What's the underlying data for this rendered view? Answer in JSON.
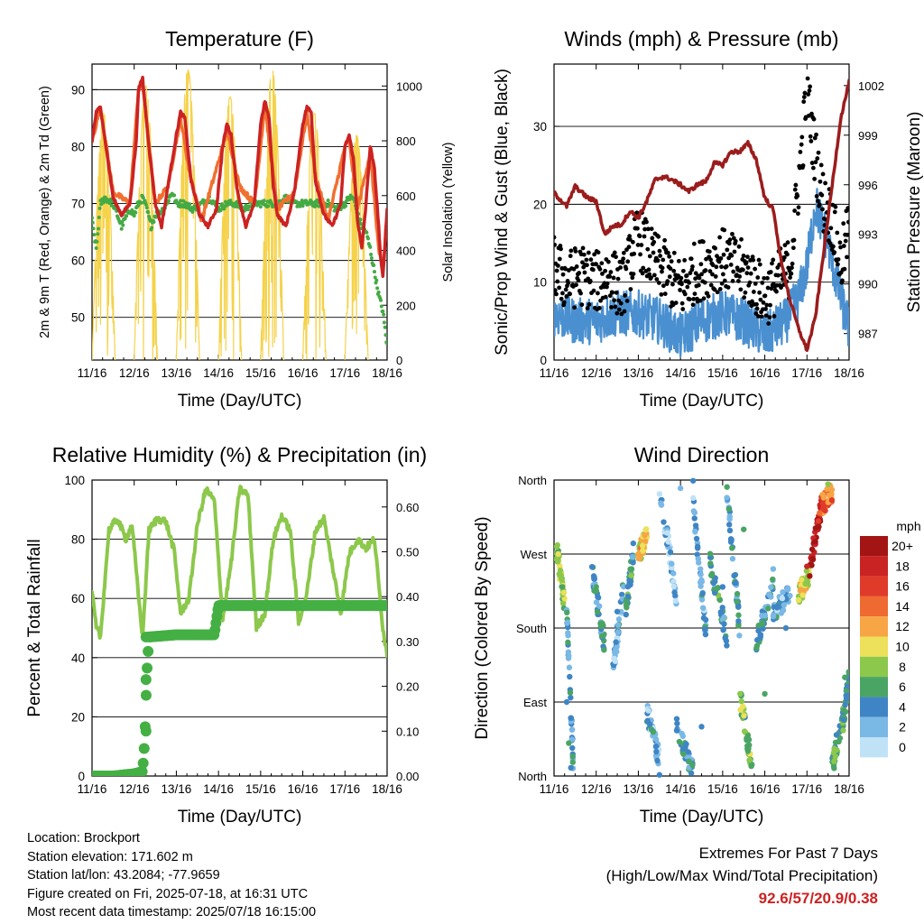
{
  "chart_data": [
    {
      "type": "line",
      "title": "Temperature (F)",
      "xlabel": "Time (Day/UTC)",
      "ylabel": "2m & 9m T (Red, Orange) & 2m Td (Green)",
      "y2label": "Solar Insolation (Yellow)",
      "xticks": [
        "11/16",
        "12/16",
        "13/16",
        "14/16",
        "15/16",
        "16/16",
        "17/16",
        "18/16"
      ],
      "xlim": [
        0,
        7
      ],
      "ylim": [
        42.5,
        94.5
      ],
      "yticks": [
        50,
        60,
        70,
        80,
        90
      ],
      "y2lim": [
        0,
        1080
      ],
      "y2ticks": [
        0,
        200,
        400,
        600,
        800,
        1000
      ],
      "series": [
        {
          "name": "2m T",
          "color": "#cc2222",
          "x": [
            0,
            0.1,
            0.2,
            0.35,
            0.5,
            0.7,
            0.9,
            1.05,
            1.1,
            1.2,
            1.35,
            1.5,
            1.65,
            1.8,
            2.0,
            2.1,
            2.2,
            2.35,
            2.55,
            2.75,
            2.95,
            3.1,
            3.2,
            3.3,
            3.45,
            3.65,
            3.85,
            4.0,
            4.1,
            4.2,
            4.3,
            4.4,
            4.6,
            4.8,
            5.0,
            5.1,
            5.2,
            5.3,
            5.5,
            5.7,
            5.9,
            6.0,
            6.1,
            6.2,
            6.3,
            6.4,
            6.5,
            6.6,
            6.7,
            6.8,
            6.85,
            6.9,
            7.0
          ],
          "y": [
            81,
            86,
            87,
            79,
            71,
            68,
            70,
            81,
            90,
            92,
            80,
            70,
            66,
            73,
            82,
            86,
            85,
            74,
            68,
            66,
            69,
            80,
            84,
            82,
            72,
            66,
            70,
            84,
            88,
            85,
            73,
            68,
            66,
            72,
            84,
            87,
            86,
            74,
            68,
            66,
            70,
            80,
            82,
            78,
            67,
            62,
            70,
            80,
            76,
            66,
            60,
            57,
            69
          ]
        },
        {
          "name": "9m T",
          "color": "#f07030",
          "x": [
            0,
            0.2,
            0.5,
            0.9,
            1.1,
            1.2,
            1.5,
            1.8,
            2.1,
            2.3,
            2.6,
            3.1,
            3.2,
            3.5,
            3.85,
            4.1,
            4.4,
            4.8,
            5.1,
            5.3,
            5.6,
            6.0,
            6.1,
            6.3,
            6.6,
            6.8,
            6.9,
            7.0
          ],
          "y": [
            81,
            87,
            72,
            70,
            90,
            91,
            70,
            73,
            85,
            76,
            67,
            80,
            83,
            73,
            70,
            87,
            69,
            72,
            86,
            75,
            67,
            80,
            81,
            69,
            79,
            62,
            58,
            68
          ]
        },
        {
          "name": "2m Td",
          "color": "#44aa44",
          "x": [
            0,
            0.1,
            0.2,
            0.3,
            0.5,
            0.7,
            0.9,
            1.0,
            1.1,
            1.2,
            1.3,
            1.4,
            1.5,
            1.7,
            1.9,
            2.0,
            2.2,
            2.4,
            2.6,
            2.8,
            3.0,
            3.2,
            3.4,
            3.6,
            3.8,
            4.0,
            4.2,
            4.4,
            4.6,
            4.8,
            5.0,
            5.2,
            5.4,
            5.6,
            5.8,
            6.0,
            6.1,
            6.2,
            6.3,
            6.4,
            6.5,
            6.6,
            6.7,
            6.8,
            6.9,
            7.0
          ],
          "y": [
            67,
            62,
            70,
            71,
            70,
            66,
            69,
            68,
            70,
            71,
            69,
            66,
            68,
            69,
            72,
            70,
            70,
            69,
            70,
            71,
            69,
            70,
            70,
            69,
            70,
            70,
            70,
            70,
            71,
            70,
            70,
            70,
            70,
            70,
            69,
            70,
            71,
            71,
            68,
            66,
            65,
            62,
            58,
            54,
            51,
            45
          ]
        }
      ],
      "solar_insolation": {
        "color": "#f5d24a",
        "day_starts": [
          0,
          1,
          2,
          3,
          4,
          5,
          6
        ],
        "day_peaks": [
          900,
          1000,
          1060,
          960,
          1060,
          900,
          820
        ]
      }
    },
    {
      "type": "line",
      "title": "Winds (mph) & Pressure (mb)",
      "xlabel": "Time (Day/UTC)",
      "ylabel": "Sonic/Prop Wind & Gust (Blue, Black)",
      "y2label": "Station Pressure (Maroon)",
      "xticks": [
        "11/16",
        "12/16",
        "13/16",
        "14/16",
        "15/16",
        "16/16",
        "17/16",
        "18/16"
      ],
      "xlim": [
        0,
        7
      ],
      "ylim": [
        0,
        38
      ],
      "yticks": [
        0,
        10,
        20,
        30
      ],
      "y2lim": [
        985.4,
        1003.3
      ],
      "y2ticks": [
        987,
        990,
        993,
        996,
        999,
        1002
      ],
      "series": [
        {
          "name": "Sonic/Prop Wind",
          "color": "#4a90d0",
          "style": "band",
          "x": [
            0,
            0.5,
            1,
            1.5,
            2,
            2.5,
            3,
            3.5,
            4,
            4.5,
            5,
            5.5,
            5.8,
            6.0,
            6.2,
            6.5,
            6.8,
            7.0
          ],
          "y": [
            6,
            5,
            5,
            6,
            6,
            5,
            3,
            5,
            6,
            5,
            3,
            5,
            8,
            12,
            20,
            15,
            8,
            4
          ]
        },
        {
          "name": "Gust",
          "color": "#000000",
          "style": "points",
          "x": [
            0,
            0.3,
            0.6,
            1,
            1.3,
            1.6,
            2,
            2.3,
            2.5,
            2.7,
            3,
            3.3,
            3.6,
            4,
            4.3,
            4.6,
            5,
            5.3,
            5.6,
            5.9,
            6,
            6.1,
            6.2,
            6.4,
            6.6,
            6.8,
            7.0
          ],
          "y": [
            12,
            10,
            11,
            10,
            11,
            9,
            16,
            13,
            12,
            11,
            9,
            11,
            12,
            13,
            12,
            11,
            8,
            10,
            12,
            28,
            36,
            30,
            26,
            20,
            18,
            12,
            17
          ]
        },
        {
          "name": "Station Pressure",
          "color": "#9b1c1c",
          "style": "line",
          "x": [
            0,
            0.3,
            0.5,
            0.8,
            1.0,
            1.2,
            1.4,
            1.6,
            1.8,
            2.0,
            2.2,
            2.4,
            2.6,
            2.8,
            3.0,
            3.2,
            3.4,
            3.6,
            3.8,
            4.0,
            4.2,
            4.4,
            4.6,
            4.8,
            5.0,
            5.2,
            5.4,
            5.6,
            5.8,
            6.0,
            6.2,
            6.4,
            6.6,
            6.8,
            7.0
          ],
          "y": [
            995.5,
            994.7,
            995.9,
            995.2,
            995.0,
            993.0,
            993.5,
            993.6,
            994.4,
            994.0,
            995.0,
            996.3,
            996.5,
            996.3,
            996.0,
            995.6,
            996.0,
            996.2,
            997.3,
            997.2,
            998.0,
            998.0,
            998.5,
            997.5,
            995.2,
            994.5,
            991.2,
            989.0,
            987.3,
            986.0,
            988.0,
            992.0,
            996.0,
            1000.0,
            1002.2
          ]
        }
      ]
    },
    {
      "type": "line",
      "title": "Relative Humidity (%) & Precipitation (in)",
      "xlabel": "Time (Day/UTC)",
      "ylabel": "Percent & Total Rainfall",
      "xticks": [
        "11/16",
        "12/16",
        "13/16",
        "14/16",
        "15/16",
        "16/16",
        "17/16",
        "18/16"
      ],
      "xlim": [
        0,
        7
      ],
      "ylim": [
        0,
        100
      ],
      "yticks": [
        0,
        20,
        40,
        60,
        80,
        100
      ],
      "y2lim": [
        0,
        0.66
      ],
      "y2ticks": [
        "0.00",
        "0.10",
        "0.20",
        "0.30",
        "0.40",
        "0.50",
        "0.60"
      ],
      "series": [
        {
          "name": "Relative Humidity",
          "color": "#8cc84b",
          "x": [
            0,
            0.1,
            0.2,
            0.4,
            0.6,
            0.8,
            0.95,
            1.1,
            1.2,
            1.35,
            1.55,
            1.75,
            1.95,
            2.1,
            2.3,
            2.5,
            2.7,
            2.9,
            3.1,
            3.3,
            3.5,
            3.7,
            3.9,
            4.1,
            4.3,
            4.5,
            4.7,
            4.9,
            5.1,
            5.3,
            5.5,
            5.7,
            5.9,
            6.1,
            6.3,
            6.5,
            6.7,
            6.9,
            7.0
          ],
          "y": [
            62,
            50,
            47,
            83,
            87,
            80,
            85,
            61,
            47,
            83,
            87,
            86,
            76,
            55,
            60,
            85,
            97,
            93,
            53,
            72,
            97,
            95,
            50,
            55,
            80,
            88,
            83,
            52,
            62,
            83,
            87,
            71,
            55,
            75,
            80,
            77,
            80,
            50,
            41
          ]
        },
        {
          "name": "Total Rainfall",
          "color": "#44b044",
          "x": [
            0,
            0.5,
            1.0,
            1.2,
            1.25,
            1.3,
            1.35,
            2.0,
            2.5,
            2.9,
            3.0,
            4.0,
            5.0,
            6.0,
            7.0
          ],
          "y": [
            0,
            0,
            0.005,
            0.01,
            0.08,
            0.23,
            0.31,
            0.315,
            0.315,
            0.315,
            0.38,
            0.38,
            0.38,
            0.38,
            0.38
          ]
        }
      ]
    },
    {
      "type": "scatter",
      "title": "Wind Direction",
      "xlabel": "Time (Day/UTC)",
      "ylabel": "Direction (Colored By Speed)",
      "xticks": [
        "11/16",
        "12/16",
        "13/16",
        "14/16",
        "15/16",
        "16/16",
        "17/16",
        "18/16"
      ],
      "xlim": [
        0,
        7
      ],
      "ylim": [
        0,
        360
      ],
      "yticks": [
        "North",
        "East",
        "South",
        "West",
        "North"
      ],
      "colorbar": {
        "title": "mph",
        "labels": [
          "20+",
          "18",
          "16",
          "14",
          "12",
          "10",
          "8",
          "6",
          "4",
          "2",
          "0"
        ],
        "colors": [
          "#a31515",
          "#c92323",
          "#e03a2a",
          "#ef6a30",
          "#f7a545",
          "#ede05a",
          "#8cc84b",
          "#4aa564",
          "#3f85c5",
          "#7ab8e6",
          "#c0e2f6"
        ]
      },
      "points_sparse": [
        {
          "x": 0.1,
          "d": 270,
          "s": 10
        },
        {
          "x": 0.15,
          "d": 250,
          "s": 8
        },
        {
          "x": 0.2,
          "d": 230,
          "s": 6
        },
        {
          "x": 0.3,
          "d": 90,
          "s": 4
        },
        {
          "x": 0.35,
          "d": 40,
          "s": 6
        },
        {
          "x": 0.4,
          "d": 10,
          "s": 4
        },
        {
          "x": 1.0,
          "d": 230,
          "s": 6
        },
        {
          "x": 1.5,
          "d": 200,
          "s": 4
        },
        {
          "x": 2.0,
          "d": 270,
          "s": 12
        },
        {
          "x": 2.1,
          "d": 280,
          "s": 10
        },
        {
          "x": 3.0,
          "d": 350,
          "s": 2
        },
        {
          "x": 3.5,
          "d": 60,
          "s": 4
        },
        {
          "x": 4.0,
          "d": 230,
          "s": 4
        },
        {
          "x": 4.5,
          "d": 300,
          "s": 6
        },
        {
          "x": 5.0,
          "d": 100,
          "s": 6
        },
        {
          "x": 5.5,
          "d": 180,
          "s": 4
        },
        {
          "x": 5.9,
          "d": 220,
          "s": 10
        },
        {
          "x": 6.0,
          "d": 255,
          "s": 18
        },
        {
          "x": 6.2,
          "d": 285,
          "s": 20
        },
        {
          "x": 6.3,
          "d": 320,
          "s": 14
        },
        {
          "x": 6.5,
          "d": 355,
          "s": 8
        },
        {
          "x": 6.7,
          "d": 50,
          "s": 4
        },
        {
          "x": 6.9,
          "d": 120,
          "s": 6
        }
      ]
    }
  ],
  "info": {
    "location": "Location: Brockport",
    "elevation": "Station elevation: 171.602 m",
    "latlon": "Station lat/lon: 43.2084; -77.9659",
    "created": "Figure created on Fri, 2025-07-18, at 16:31 UTC",
    "recent": "Most recent data timestamp: 2025/07/18 16:15:00"
  },
  "extremes": {
    "line1": "Extremes For Past 7 Days",
    "line2": "(High/Low/Max Wind/Total Precipitation)",
    "values": "92.6/57/20.9/0.38"
  }
}
